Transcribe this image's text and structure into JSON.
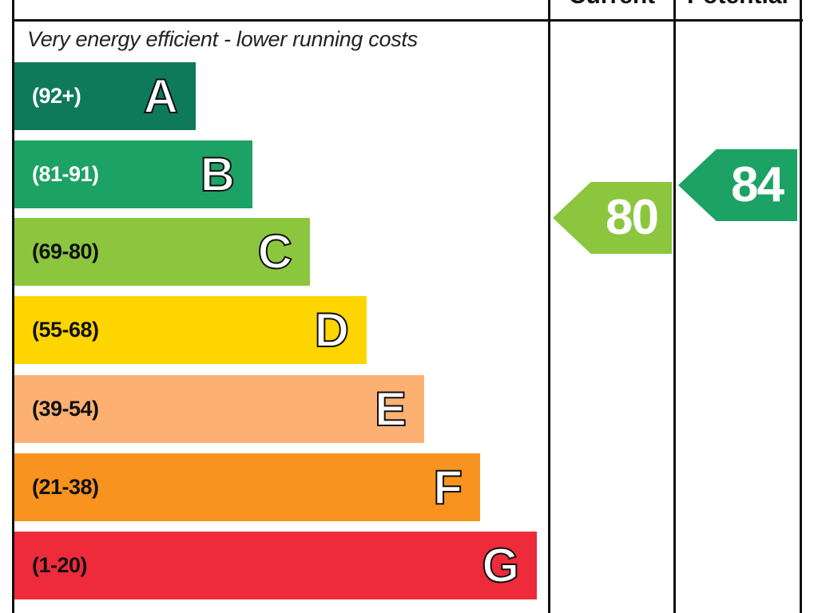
{
  "chart_data": {
    "type": "bar",
    "headers": {
      "current": "Current",
      "potential": "Potential"
    },
    "top_note": "Very energy efficient - lower running costs",
    "bands": [
      {
        "range": "(92+)",
        "letter": "A",
        "color": "#0f7a5a"
      },
      {
        "range": "(81-91)",
        "letter": "B",
        "color": "#1ca264"
      },
      {
        "range": "(69-80)",
        "letter": "C",
        "color": "#8cc63f"
      },
      {
        "range": "(55-68)",
        "letter": "D",
        "color": "#ffd500"
      },
      {
        "range": "(39-54)",
        "letter": "E",
        "color": "#fcb173"
      },
      {
        "range": "(21-38)",
        "letter": "F",
        "color": "#f7931e"
      },
      {
        "range": "(1-20)",
        "letter": "G",
        "color": "#ee2b3b"
      }
    ],
    "current": {
      "value": "80",
      "band": "C",
      "color": "#8cc63f"
    },
    "potential": {
      "value": "84",
      "band": "B",
      "color": "#1ca264"
    }
  }
}
